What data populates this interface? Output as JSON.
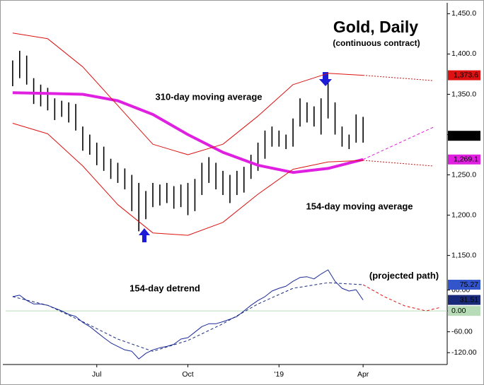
{
  "chart_data": [
    {
      "type": "hilo",
      "title": "Gold, Daily",
      "subtitle": "(continuous contract)",
      "annotations": [
        {
          "text": "310-day moving average",
          "color": "#1c1cd8"
        },
        {
          "text": "154-day moving average",
          "color": "#e020e0"
        }
      ],
      "xlim": [
        -1,
        62
      ],
      "ylim": [
        1133,
        1460
      ],
      "yticks": [
        {
          "value": 1450,
          "label": "1,450.0"
        },
        {
          "value": 1400,
          "label": "1,400.0"
        },
        {
          "value": 1350,
          "label": "1,350.0"
        },
        {
          "value": 1300,
          "label": "1,300.0"
        },
        {
          "value": 1250,
          "label": "1,250.0"
        },
        {
          "value": 1200,
          "label": "1,200.0"
        },
        {
          "value": 1150,
          "label": "1,150.0"
        }
      ],
      "bars": {
        "color": "#000000",
        "x": [
          0,
          1,
          2,
          3,
          4,
          5,
          6,
          7,
          8,
          9,
          10,
          11,
          12,
          13,
          14,
          15,
          16,
          17,
          18,
          19,
          20,
          21,
          22,
          23,
          24,
          25,
          26,
          27,
          28,
          29,
          30,
          31,
          32,
          33,
          34,
          35,
          36,
          37,
          38,
          39,
          40,
          41,
          42,
          43,
          44,
          45,
          46,
          47,
          48,
          49,
          50
        ],
        "high": [
          1392,
          1404,
          1398,
          1370,
          1362,
          1358,
          1345,
          1342,
          1340,
          1338,
          1310,
          1300,
          1290,
          1285,
          1270,
          1265,
          1258,
          1250,
          1240,
          1230,
          1240,
          1238,
          1240,
          1236,
          1238,
          1240,
          1245,
          1265,
          1272,
          1265,
          1255,
          1250,
          1255,
          1260,
          1275,
          1290,
          1305,
          1310,
          1305,
          1300,
          1320,
          1345,
          1340,
          1335,
          1345,
          1364,
          1340,
          1310,
          1300,
          1325,
          1322
        ],
        "low": [
          1360,
          1370,
          1362,
          1338,
          1335,
          1330,
          1318,
          1322,
          1315,
          1305,
          1280,
          1275,
          1262,
          1255,
          1245,
          1240,
          1232,
          1205,
          1180,
          1195,
          1210,
          1212,
          1215,
          1208,
          1210,
          1200,
          1205,
          1225,
          1240,
          1232,
          1225,
          1215,
          1225,
          1228,
          1245,
          1255,
          1270,
          1285,
          1285,
          1282,
          1285,
          1310,
          1315,
          1310,
          1300,
          1320,
          1300,
          1285,
          1282,
          1290,
          1290
        ],
        "close": {
          "value": 1298.5,
          "label": "1,298.5"
        }
      },
      "lines": [
        {
          "color": "#e020e0",
          "style": "thick",
          "x": [
            0,
            5,
            10,
            15,
            20,
            25,
            30,
            35,
            40,
            45,
            50
          ],
          "values": [
            1352,
            1351,
            1350,
            1342,
            1325,
            1300,
            1278,
            1262,
            1253,
            1258,
            1269.1
          ],
          "last_label": "1,269.1"
        },
        {
          "color": "#e020e0",
          "style": "dashed",
          "x": [
            50,
            60
          ],
          "values": [
            1269.1,
            1309
          ]
        },
        {
          "color": "#dd1111",
          "style": "thin",
          "x": [
            0,
            5,
            10,
            15,
            20,
            25,
            30,
            35,
            40,
            45,
            50
          ],
          "values": [
            1426,
            1419,
            1384,
            1336,
            1288,
            1275,
            1288,
            1323,
            1362,
            1376,
            1373.6
          ],
          "last_label": "1,373.6"
        },
        {
          "color": "#dd1111",
          "style": "dotted",
          "x": [
            50,
            60
          ],
          "values": [
            1373.6,
            1367
          ]
        },
        {
          "color": "#dd1111",
          "style": "thin",
          "x": [
            0,
            5,
            10,
            15,
            20,
            25,
            30,
            35,
            40,
            45,
            50
          ],
          "values": [
            1314,
            1301,
            1261,
            1213,
            1178,
            1175,
            1191,
            1226,
            1257,
            1266,
            1268
          ]
        },
        {
          "color": "#dd1111",
          "style": "dotted",
          "x": [
            50,
            60
          ],
          "values": [
            1268,
            1261
          ]
        }
      ]
    },
    {
      "type": "line",
      "annotations": [
        {
          "text": "154-day detrend",
          "color": "#000000"
        },
        {
          "text": "(projected path)",
          "color": "#000000"
        }
      ],
      "xlim": [
        -1,
        62
      ],
      "ylim": [
        -150,
        120
      ],
      "xticks": [
        {
          "value": 12,
          "label": "Jul"
        },
        {
          "value": 25,
          "label": "Oct"
        },
        {
          "value": 38,
          "label": "'19"
        },
        {
          "value": 50,
          "label": "Apr"
        }
      ],
      "yticks": [
        {
          "value": 60,
          "label": "60.00"
        },
        {
          "value": 0,
          "label": "0.00"
        },
        {
          "value": -60,
          "label": "-60.00"
        },
        {
          "value": -120,
          "label": "-120.00"
        }
      ],
      "hline": {
        "value": 0,
        "color": "#b8dcb8"
      },
      "lines": [
        {
          "color": "#1a2a9a",
          "style": "thin",
          "x": [
            0,
            1,
            2,
            3,
            4,
            5,
            6,
            7,
            8,
            9,
            10,
            11,
            12,
            13,
            14,
            15,
            16,
            17,
            18,
            19,
            20,
            21,
            22,
            23,
            24,
            25,
            26,
            27,
            28,
            29,
            30,
            31,
            32,
            33,
            34,
            35,
            36,
            37,
            38,
            39,
            40,
            41,
            42,
            43,
            44,
            45,
            46,
            47,
            48,
            49,
            50
          ],
          "values": [
            41,
            45,
            30,
            20,
            20,
            16,
            8,
            0,
            -10,
            -16,
            -33,
            -45,
            -61,
            -77,
            -92,
            -102,
            -112,
            -116,
            -138,
            -122,
            -112,
            -106,
            -102,
            -96,
            -81,
            -77,
            -61,
            -45,
            -37,
            -37,
            -31,
            -24,
            -16,
            0,
            16,
            30,
            41,
            57,
            65,
            71,
            85,
            96,
            98,
            92,
            106,
            118,
            85,
            65,
            57,
            61,
            31.51
          ],
          "last_label": "31.51"
        },
        {
          "color": "#1a2a7a",
          "style": "dashed",
          "x": [
            0,
            5,
            10,
            15,
            20,
            25,
            30,
            35,
            40,
            45,
            50
          ],
          "values": [
            41,
            16,
            -31,
            -81,
            -116,
            -85,
            -37,
            20,
            65,
            81,
            75.27
          ],
          "last_label": "75.27"
        },
        {
          "color": "#dd1111",
          "style": "dashed",
          "x": [
            50,
            53,
            56,
            59,
            61
          ],
          "values": [
            75.27,
            41,
            14,
            0,
            10
          ]
        }
      ]
    }
  ]
}
